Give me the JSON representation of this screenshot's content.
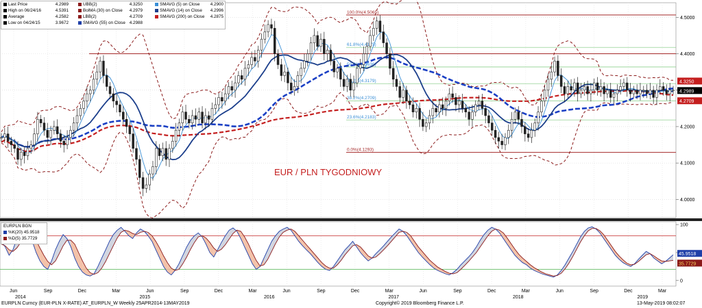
{
  "legend": {
    "rows": [
      {
        "label": "Last Price",
        "value": "4.2989",
        "color": "#000000"
      },
      {
        "label": "High on 06/24/16",
        "value": "4.5391",
        "color": "#000000"
      },
      {
        "label": "Average",
        "value": "4.2582",
        "color": "#000000"
      },
      {
        "label": "Low on 04/24/15",
        "value": "3.9672",
        "color": "#000000"
      },
      {
        "label": "UBB(2)",
        "value": "4.3250",
        "color": "#8b1a1a"
      },
      {
        "label": "BolMA (30)   on Close",
        "value": "4.2979",
        "color": "#8b1a1a"
      },
      {
        "label": "LBB(2)",
        "value": "4.2709",
        "color": "#8b1a1a"
      },
      {
        "label": "SMAVG (55)   on Close",
        "value": "4.2988",
        "color": "#1f3fa8"
      },
      {
        "label": "SMAVG (5)   on Close",
        "value": "4.2900",
        "color": "#3a8fd6"
      },
      {
        "label": "SMAVG (14)   on Close",
        "value": "4.2996",
        "color": "#1c3f8c"
      },
      {
        "label": "SMAVG (200)   on Close",
        "value": "4.2875",
        "color": "#c41e1e"
      }
    ]
  },
  "indicator_legend": {
    "title": "EURPLN BGN",
    "rows": [
      {
        "label": "%K(20)",
        "value": "45.9518",
        "color": "#1f3fa8"
      },
      {
        "label": "%D(5)",
        "value": "35.7729",
        "color": "#8b1a1a"
      }
    ]
  },
  "footer": {
    "left": "EURPLN Curncy (EUR-PLN X-RATE) AT_EURPLN_W  Weekly 25APR2014-13MAY2019",
    "center": "Copyright© 2019 Bloomberg Finance L.P.",
    "right": "13-May-2019 08:02:07"
  },
  "colors": {
    "candle_up": "#2a2a2a",
    "bollinger": "#8b1a1a",
    "sma5": "#3a8fd6",
    "sma14": "#1c3f8c",
    "sma55": "#1a3fc4",
    "sma200": "#c41e1e",
    "level_line": "#a52a2a",
    "fib_green": "#7ec87e",
    "stoch_k": "#1f3fa8",
    "stoch_d": "#8b1a1a"
  },
  "chart_data": [
    {
      "type": "candlestick",
      "title": "EUR / PLN TYGODNIOWY",
      "ylim": [
        3.95,
        4.54
      ],
      "yticks": [
        4.0,
        4.1,
        4.2,
        4.3,
        4.4,
        4.5
      ],
      "ytick_labels": [
        "4.0000",
        "4.1000",
        "4.2000",
        "4.3000",
        "4.4000",
        "4.5000"
      ],
      "x_month_labels": [
        "Jun",
        "Sep",
        "Dec",
        "Mar",
        "Jun",
        "Sep",
        "Dec",
        "Mar",
        "Jun",
        "Sep",
        "Dec",
        "Mar",
        "Jun",
        "Sep",
        "Dec",
        "Mar",
        "Jun",
        "Sep",
        "Dec",
        "Mar"
      ],
      "x_year_labels": [
        "2014",
        "2015",
        "2016",
        "2017",
        "2018",
        "2019"
      ],
      "closes_weekly": [
        4.17,
        4.18,
        4.16,
        4.15,
        4.14,
        4.11,
        4.13,
        4.12,
        4.14,
        4.15,
        4.18,
        4.22,
        4.21,
        4.19,
        4.17,
        4.19,
        4.2,
        4.18,
        4.16,
        4.15,
        4.17,
        4.19,
        4.21,
        4.23,
        4.25,
        4.27,
        4.29,
        4.3,
        4.33,
        4.35,
        4.38,
        4.34,
        4.31,
        4.29,
        4.27,
        4.26,
        4.24,
        4.22,
        4.2,
        4.18,
        4.14,
        4.11,
        4.06,
        4.03,
        4.04,
        4.07,
        4.09,
        4.14,
        4.12,
        4.14,
        4.11,
        4.14,
        4.16,
        4.19,
        4.21,
        4.24,
        4.22,
        4.21,
        4.23,
        4.22,
        4.24,
        4.21,
        4.23,
        4.22,
        4.25,
        4.26,
        4.28,
        4.27,
        4.29,
        4.31,
        4.3,
        4.32,
        4.34,
        4.33,
        4.36,
        4.37,
        4.39,
        4.38,
        4.41,
        4.44,
        4.46,
        4.48,
        4.47,
        4.4,
        4.37,
        4.34,
        4.35,
        4.32,
        4.3,
        4.31,
        4.34,
        4.36,
        4.38,
        4.4,
        4.43,
        4.45,
        4.42,
        4.44,
        4.4,
        4.41,
        4.38,
        4.35,
        4.36,
        4.33,
        4.31,
        4.33,
        4.3,
        4.32,
        4.36,
        4.37,
        4.4,
        4.42,
        4.45,
        4.47,
        4.49,
        4.46,
        4.43,
        4.4,
        4.36,
        4.33,
        4.31,
        4.28,
        4.3,
        4.27,
        4.26,
        4.24,
        4.25,
        4.22,
        4.2,
        4.21,
        4.23,
        4.25,
        4.24,
        4.26,
        4.25,
        4.27,
        4.29,
        4.28,
        4.26,
        4.27,
        4.25,
        4.24,
        4.22,
        4.24,
        4.26,
        4.27,
        4.25,
        4.23,
        4.21,
        4.19,
        4.17,
        4.16,
        4.15,
        4.17,
        4.19,
        4.22,
        4.24,
        4.22,
        4.2,
        4.18,
        4.17,
        4.19,
        4.21,
        4.24,
        4.27,
        4.3,
        4.33,
        4.35,
        4.38,
        4.34,
        4.31,
        4.29,
        4.31,
        4.3,
        4.32,
        4.29,
        4.3,
        4.31,
        4.29,
        4.3,
        4.32,
        4.3,
        4.31,
        4.29,
        4.3,
        4.28,
        4.29,
        4.3,
        4.31,
        4.32,
        4.3,
        4.29,
        4.3,
        4.29,
        4.3,
        4.3,
        4.29,
        4.3,
        4.28,
        4.3,
        4.31,
        4.3,
        4.29,
        4.3,
        4.3
      ],
      "levels": [
        {
          "label": "100.0%(4.5065)",
          "value": 4.5065
        },
        {
          "label": "",
          "value": 4.4
        },
        {
          "label": "61.8%(4.4175)",
          "value": 4.4175
        },
        {
          "label": "50.0%(4.3636)",
          "value": 4.3636
        },
        {
          "label": "38.2%(4.3179)",
          "value": 4.3179
        },
        {
          "label": "38.2%(4.2709)",
          "value": 4.2709
        },
        {
          "label": "23.6%(4.2183)",
          "value": 4.2183
        },
        {
          "label": "0.0%(4.1293)",
          "value": 4.1293
        }
      ],
      "right_labels": [
        {
          "label": "4.3250",
          "value": 4.325,
          "color": "#c41e1e"
        },
        {
          "label": "4.2989",
          "value": 4.2989,
          "color": "#000000"
        },
        {
          "label": "4.2709",
          "value": 4.2709,
          "color": "#c41e1e"
        }
      ]
    },
    {
      "type": "line",
      "title": "EURPLN BGN",
      "ylim": [
        -10,
        105
      ],
      "yticks": [
        0,
        50,
        100
      ],
      "ytick_labels": [
        "0",
        "50",
        "100"
      ],
      "hlines": [
        80,
        20
      ],
      "series": [
        {
          "name": "%K(20)",
          "values": [
            70,
            60,
            45,
            55,
            75,
            88,
            92,
            85,
            70,
            50,
            35,
            25,
            20,
            35,
            55,
            70,
            82,
            75,
            60,
            40,
            25,
            15,
            10,
            8,
            12,
            25,
            40,
            55,
            70,
            82,
            90,
            95,
            88,
            80,
            75,
            85,
            92,
            88,
            80,
            70,
            55,
            40,
            25,
            15,
            10,
            18,
            30,
            45,
            60,
            72,
            80,
            85,
            78,
            65,
            50,
            42,
            55,
            68,
            80,
            90,
            94,
            88,
            75,
            60,
            45,
            30,
            20,
            25,
            40,
            55,
            70,
            80,
            88,
            92,
            95,
            90,
            80,
            70,
            62,
            55,
            48,
            40,
            32,
            25,
            20,
            18,
            25,
            35,
            45,
            55,
            62,
            70,
            60,
            50,
            42,
            35,
            40,
            48,
            55,
            62,
            70,
            78,
            85,
            92,
            88,
            80,
            70,
            60,
            50,
            42,
            35,
            28,
            22,
            18,
            15,
            12,
            10,
            14,
            20,
            28,
            35,
            42,
            50,
            60,
            72,
            82,
            90,
            95,
            92,
            85,
            75,
            65,
            55,
            45,
            38,
            32,
            28,
            22,
            18,
            15,
            12,
            10,
            8,
            6,
            10,
            18,
            28,
            40,
            52,
            65,
            78,
            88,
            94,
            96,
            92,
            85,
            75,
            65,
            55,
            45,
            38,
            32,
            28,
            25,
            30,
            38,
            45,
            52,
            48,
            40,
            35,
            30,
            34,
            40,
            46
          ]
        },
        {
          "name": "%D(5)",
          "values": [
            65,
            62,
            55,
            52,
            58,
            68,
            80,
            86,
            82,
            72,
            58,
            45,
            34,
            28,
            35,
            48,
            62,
            72,
            72,
            65,
            50,
            35,
            22,
            14,
            11,
            14,
            22,
            34,
            48,
            62,
            76,
            86,
            90,
            88,
            84,
            82,
            86,
            88,
            86,
            80,
            70,
            58,
            44,
            32,
            22,
            18,
            20,
            30,
            42,
            56,
            68,
            78,
            80,
            76,
            68,
            58,
            52,
            56,
            64,
            74,
            84,
            90,
            88,
            78,
            65,
            50,
            36,
            26,
            28,
            38,
            52,
            66,
            78,
            86,
            90,
            92,
            88,
            80,
            72,
            64,
            56,
            48,
            40,
            32,
            26,
            22,
            22,
            28,
            36,
            46,
            54,
            62,
            64,
            60,
            52,
            44,
            40,
            42,
            48,
            55,
            62,
            70,
            78,
            86,
            88,
            86,
            80,
            70,
            60,
            52,
            44,
            36,
            30,
            24,
            20,
            16,
            13,
            12,
            14,
            20,
            27,
            34,
            42,
            50,
            60,
            70,
            80,
            88,
            92,
            90,
            85,
            76,
            66,
            56,
            47,
            40,
            34,
            28,
            23,
            19,
            15,
            12,
            10,
            8,
            9,
            13,
            21,
            31,
            43,
            56,
            69,
            80,
            89,
            93,
            93,
            89,
            82,
            72,
            62,
            52,
            44,
            37,
            31,
            28,
            29,
            34,
            40,
            46,
            48,
            44,
            39,
            35,
            34,
            35,
            36
          ]
        }
      ]
    }
  ]
}
